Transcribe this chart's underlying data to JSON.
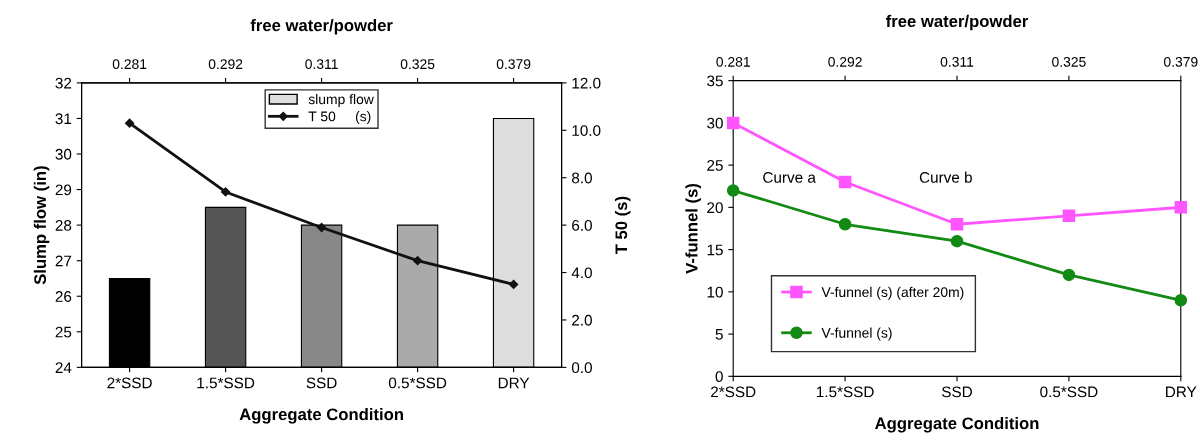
{
  "chart_data": [
    {
      "type": "bar",
      "xlabel": "Aggregate Condition",
      "ylabel": "Slump flow (in)",
      "y2label": "T 50 (s)",
      "x2label": "free water/powder",
      "categories": [
        "2*SSD",
        "1.5*SSD",
        "SSD",
        "0.5*SSD",
        "DRY"
      ],
      "series": [
        {
          "name": "slump flow",
          "type": "bar",
          "colors": [
            "#000000",
            "#555555",
            "#888888",
            "#aaaaaa",
            "#dddddd"
          ],
          "values": [
            26.5,
            28.5,
            28,
            28,
            31
          ]
        },
        {
          "name": "T 50     (s)",
          "type": "line",
          "axis": "y2",
          "color": "#111111",
          "marker": "diamond",
          "values": [
            10.3,
            7.4,
            5.9,
            4.5,
            3.5
          ]
        }
      ],
      "ylim": [
        24,
        32
      ],
      "yticks": [
        24,
        25,
        26,
        27,
        28,
        29,
        30,
        31,
        32
      ],
      "y2lim": [
        0,
        12
      ],
      "y2ticks": [
        {
          "value": 0,
          "label": "0.0"
        },
        {
          "value": 2,
          "label": "2.0"
        },
        {
          "value": 4,
          "label": "4.0"
        },
        {
          "value": 6,
          "label": "6.0"
        },
        {
          "value": 8,
          "label": "8.0"
        },
        {
          "value": 10,
          "label": "10.0"
        },
        {
          "value": 12,
          "label": "12.0"
        }
      ],
      "annotations": [
        "0.281",
        "0.292",
        "0.311",
        "0.325",
        "0.379"
      ],
      "legend": "top",
      "grid": false
    },
    {
      "type": "line",
      "xlabel": "Aggregate Condition",
      "ylabel": "V-funnel (s)",
      "x2label": "free water/powder",
      "categories": [
        "2*SSD",
        "1.5*SSD",
        "SSD",
        "0.5*SSD",
        "DRY"
      ],
      "series": [
        {
          "name": "V-funnel (s) (after 20m)",
          "color": "#ff55ff",
          "marker": "square",
          "values": [
            30,
            23,
            18,
            19,
            20
          ]
        },
        {
          "name": "V-funnel (s)",
          "color": "#138a13",
          "marker": "circle",
          "values": [
            22,
            18,
            16,
            12,
            9
          ]
        }
      ],
      "ylim": [
        0,
        35
      ],
      "yticks": [
        0,
        5,
        10,
        15,
        20,
        25,
        30,
        35
      ],
      "annotations": [
        "0.281",
        "0.292",
        "0.311",
        "0.325",
        "0.379",
        "Curve a",
        "Curve b"
      ],
      "legend": "bottom left",
      "grid": false
    }
  ]
}
